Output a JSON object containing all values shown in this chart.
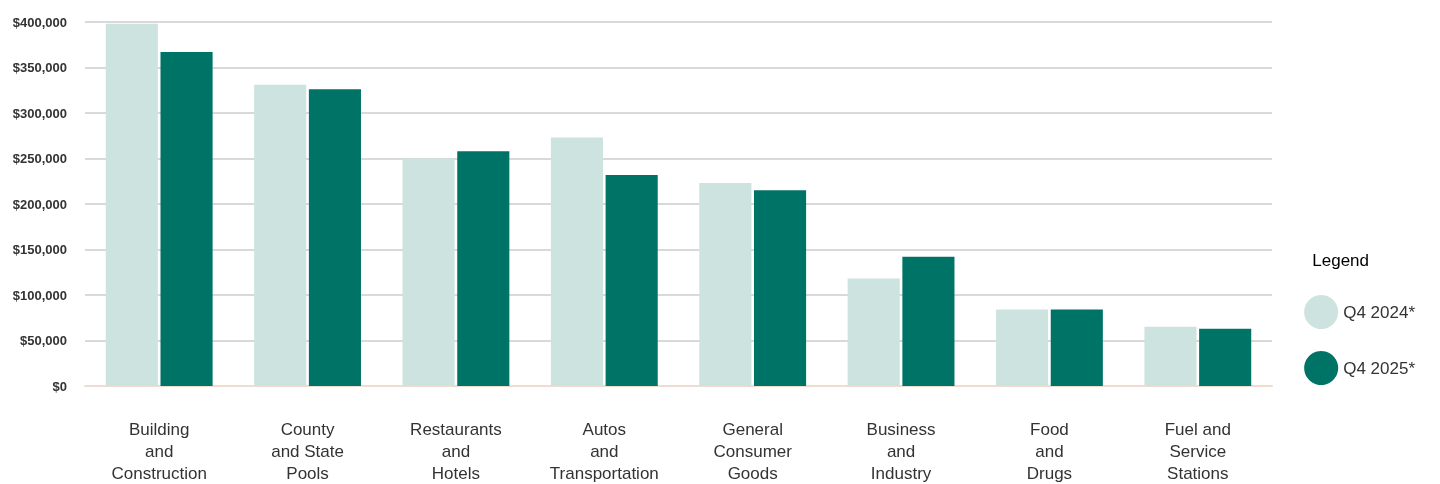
{
  "chart_data": {
    "type": "bar",
    "legend_title": "Legend",
    "legend": "right",
    "grid": "y",
    "categories": [
      "Building\nand\nConstruction",
      "County\nand State\nPools",
      "Restaurants\nand\nHotels",
      "Autos\nand\nTransportation",
      "General\nConsumer\nGoods",
      "Business\nand\nIndustry",
      "Food\nand\nDrugs",
      "Fuel and\nService\nStations"
    ],
    "series": [
      {
        "name": "Q4 2024*",
        "color": "#cde3e0",
        "values": [
          398000,
          331000,
          250000,
          273000,
          223000,
          118000,
          84000,
          65000
        ]
      },
      {
        "name": "Q4 2025*",
        "color": "#007367",
        "values": [
          367000,
          326000,
          258000,
          232000,
          215000,
          142000,
          84000,
          63000
        ]
      }
    ],
    "ylim": [
      0,
      400000
    ],
    "yticks": [
      {
        "value": 0,
        "label": "$0"
      },
      {
        "value": 50000,
        "label": "$50,000"
      },
      {
        "value": 100000,
        "label": "$100,000"
      },
      {
        "value": 150000,
        "label": "$150,000"
      },
      {
        "value": 200000,
        "label": "$200,000"
      },
      {
        "value": 250000,
        "label": "$250,000"
      },
      {
        "value": 300000,
        "label": "$300,000"
      },
      {
        "value": 350000,
        "label": "$350,000"
      },
      {
        "value": 400000,
        "label": "$400,000"
      }
    ]
  }
}
